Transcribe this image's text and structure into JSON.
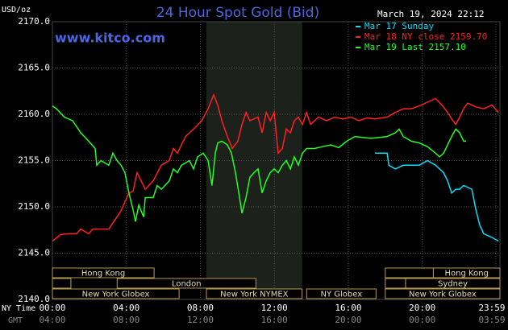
{
  "chart_data": {
    "type": "line",
    "title": "24 Hour Spot Gold (Bid)",
    "site": "www.kitco.com",
    "unit_label": "USD/oz",
    "timestamp": "March 19, 2024 22:12",
    "x_axis_label": "NY Time",
    "x2_axis_label": "GMT",
    "xlim": [
      0,
      24.2
    ],
    "xticks": [
      {
        "value": 0,
        "label": "00:00"
      },
      {
        "value": 4,
        "label": "04:00"
      },
      {
        "value": 8,
        "label": "08:00"
      },
      {
        "value": 12,
        "label": "12:00"
      },
      {
        "value": 16,
        "label": "16:00"
      },
      {
        "value": 20,
        "label": "20:00"
      },
      {
        "value": 23.98,
        "label": "23:59"
      }
    ],
    "x2ticks": [
      {
        "value": 0,
        "label": "04:00"
      },
      {
        "value": 4,
        "label": "08:00"
      },
      {
        "value": 8,
        "label": "12:00"
      },
      {
        "value": 12,
        "label": "16:00"
      },
      {
        "value": 16,
        "label": "20:00"
      },
      {
        "value": 20,
        "label": "00:00"
      },
      {
        "value": 23.98,
        "label": "03:59"
      }
    ],
    "ylim": [
      2140,
      2170
    ],
    "yticks": [
      {
        "value": 2140,
        "label": "2140.0"
      },
      {
        "value": 2145,
        "label": "2145.0"
      },
      {
        "value": 2150,
        "label": "2150.0"
      },
      {
        "value": 2155,
        "label": "2155.0"
      },
      {
        "value": 2160,
        "label": "2160.0"
      },
      {
        "value": 2165,
        "label": "2165.0"
      },
      {
        "value": 2170,
        "label": "2170.0"
      }
    ],
    "grid": true,
    "highlight": {
      "start": 8.33,
      "end": 13.5
    },
    "series": [
      {
        "name": "Mar 17 Sunday",
        "color": "#00e0ff",
        "x": [
          17.44,
          18.1,
          18.19,
          18.54,
          18.97,
          19.41,
          19.84,
          20.28,
          20.72,
          21.15,
          21.37,
          21.59,
          21.81,
          22.02,
          22.24,
          22.68,
          22.9,
          23.11,
          23.33,
          23.77,
          24.12
        ],
        "values": [
          2155.8,
          2155.8,
          2154.5,
          2154.1,
          2154.5,
          2154.5,
          2154.5,
          2155.0,
          2154.5,
          2153.7,
          2152.8,
          2151.5,
          2151.9,
          2151.9,
          2152.3,
          2151.9,
          2149.7,
          2148.0,
          2147.1,
          2146.7,
          2146.3
        ]
      },
      {
        "name": "Mar 18 NY close 2159.70",
        "color": "#ff2020",
        "x": [
          0,
          0.44,
          0.87,
          1.31,
          1.53,
          1.96,
          2.18,
          2.62,
          3.05,
          3.49,
          3.71,
          4.14,
          4.36,
          4.58,
          4.8,
          5.02,
          5.45,
          5.89,
          6.32,
          6.54,
          6.76,
          7.2,
          7.63,
          8.07,
          8.42,
          8.72,
          8.94,
          9.16,
          9.46,
          9.73,
          10.03,
          10.25,
          10.47,
          10.68,
          11.12,
          11.34,
          11.56,
          11.78,
          11.99,
          12.21,
          12.43,
          12.65,
          12.87,
          13.08,
          13.3,
          13.52,
          13.74,
          13.96,
          14.39,
          14.83,
          15.26,
          15.7,
          16.14,
          16.57,
          17.01,
          17.44,
          18.1,
          18.54,
          18.97,
          19.41,
          19.84,
          20.28,
          20.72,
          21.06,
          21.37,
          21.59,
          21.81,
          22.02,
          22.24,
          22.46,
          22.9,
          23.33,
          23.77,
          24.12
        ],
        "values": [
          2146.3,
          2147.0,
          2147.1,
          2147.1,
          2147.6,
          2147.1,
          2147.6,
          2147.6,
          2147.6,
          2148.9,
          2149.6,
          2151.5,
          2151.7,
          2153.7,
          2152.8,
          2151.9,
          2152.8,
          2154.5,
          2155.0,
          2156.3,
          2155.8,
          2157.6,
          2158.4,
          2159.3,
          2160.6,
          2162.1,
          2161.0,
          2159.3,
          2157.6,
          2156.3,
          2157.1,
          2158.9,
          2160.2,
          2159.3,
          2159.7,
          2158.0,
          2160.2,
          2159.3,
          2160.2,
          2155.8,
          2156.3,
          2158.4,
          2158.0,
          2159.3,
          2159.7,
          2158.9,
          2160.2,
          2158.9,
          2159.7,
          2159.3,
          2159.7,
          2159.5,
          2159.7,
          2159.3,
          2159.6,
          2159.5,
          2159.7,
          2160.2,
          2160.6,
          2160.6,
          2160.9,
          2161.3,
          2161.7,
          2161.0,
          2160.2,
          2159.5,
          2158.9,
          2159.7,
          2160.6,
          2161.2,
          2160.8,
          2160.6,
          2161.0,
          2160.2
        ]
      },
      {
        "name": "Mar 19 Last 2157.10",
        "color": "#20ff20",
        "x": [
          0,
          0.22,
          0.65,
          1.09,
          1.53,
          1.96,
          2.31,
          2.4,
          2.62,
          3.05,
          3.27,
          3.49,
          3.71,
          3.92,
          4.14,
          4.36,
          4.49,
          4.67,
          4.93,
          5.02,
          5.45,
          5.67,
          5.89,
          6.32,
          6.54,
          6.76,
          6.98,
          7.41,
          7.63,
          7.85,
          8.16,
          8.42,
          8.63,
          8.81,
          8.94,
          9.16,
          9.46,
          9.68,
          9.9,
          10.12,
          10.25,
          10.47,
          10.68,
          10.9,
          11.12,
          11.34,
          11.56,
          11.78,
          11.99,
          12.21,
          12.43,
          12.65,
          12.87,
          13.08,
          13.3,
          13.52,
          13.74,
          14.17,
          14.61,
          15.05,
          15.48,
          15.92,
          16.35,
          17.23,
          18.1,
          18.54,
          18.75,
          18.97,
          19.41,
          19.84,
          20.28,
          20.72,
          20.93,
          21.15,
          21.37,
          21.59,
          21.81,
          22.02,
          22.24,
          22.37
        ],
        "values": [
          2160.9,
          2160.6,
          2159.7,
          2159.3,
          2158.0,
          2157.1,
          2156.3,
          2154.5,
          2155.0,
          2154.5,
          2155.8,
          2155.0,
          2154.5,
          2153.7,
          2151.5,
          2149.7,
          2148.4,
          2150.2,
          2148.9,
          2151.0,
          2151.0,
          2152.3,
          2151.9,
          2152.8,
          2154.1,
          2153.7,
          2154.5,
          2155.0,
          2154.1,
          2155.4,
          2155.8,
          2155.0,
          2152.3,
          2155.8,
          2156.9,
          2157.1,
          2156.7,
          2155.8,
          2153.7,
          2151.0,
          2149.3,
          2151.0,
          2153.2,
          2153.7,
          2154.1,
          2151.5,
          2152.8,
          2153.7,
          2154.1,
          2153.7,
          2154.5,
          2155.0,
          2154.1,
          2155.4,
          2154.5,
          2155.8,
          2156.3,
          2156.3,
          2156.5,
          2156.7,
          2156.4,
          2157.1,
          2157.6,
          2157.4,
          2157.6,
          2158.0,
          2158.4,
          2157.6,
          2157.1,
          2156.9,
          2156.5,
          2155.8,
          2155.4,
          2155.8,
          2156.7,
          2157.6,
          2158.4,
          2158.0,
          2157.1,
          2157.1
        ]
      }
    ],
    "session_rows": [
      [
        {
          "label": "Hong Kong",
          "start": 0,
          "end": 5.5
        },
        {
          "label": null,
          "start": 18,
          "end": 20.6
        },
        {
          "label": "Hong Kong",
          "start": 20.6,
          "end": 24.2
        }
      ],
      [
        {
          "label": null,
          "start": 0,
          "end": 1
        },
        {
          "label": "London",
          "start": 3.5,
          "end": 11
        },
        {
          "label": null,
          "start": 18,
          "end": 19.1
        },
        {
          "label": "Sydney",
          "start": 19.1,
          "end": 24.2
        }
      ],
      [
        {
          "label": "New York Globex",
          "start": 0,
          "end": 6.85
        },
        {
          "label": "New York NYMEX",
          "start": 8.33,
          "end": 13.5
        },
        {
          "label": "NY Globex",
          "start": 13.75,
          "end": 17.5
        },
        {
          "label": "New York Globex",
          "start": 18,
          "end": 24.2
        }
      ]
    ]
  }
}
